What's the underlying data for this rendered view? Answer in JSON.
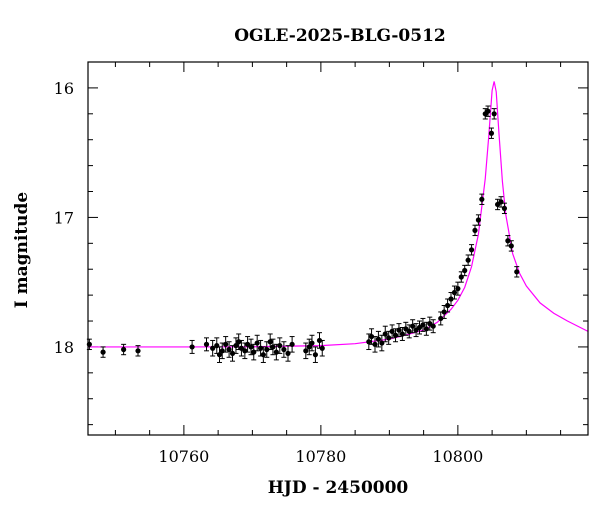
{
  "chart_data": {
    "type": "scatter",
    "title": "OGLE-2025-BLG-0512",
    "xlabel": "HJD - 2450000",
    "ylabel": "I magnitude",
    "xlim": [
      10746,
      10819
    ],
    "ylim": [
      18.68,
      15.8
    ],
    "y_inverted": true,
    "xticks_major": [
      10760,
      10780,
      10800
    ],
    "yticks_major": [
      16,
      17,
      18
    ],
    "grid": false,
    "colors": {
      "points": "#000000",
      "model": "#ff00ff"
    },
    "series": [
      {
        "kind": "observations",
        "x": [
          10746.2,
          10748.2,
          10751.2,
          10753.3,
          10761.2,
          10763.3,
          10764.2,
          10764.8,
          10765.2,
          10765.6,
          10766.1,
          10766.6,
          10767.1,
          10767.6,
          10768.0,
          10768.4,
          10768.9,
          10769.3,
          10769.8,
          10770.2,
          10770.7,
          10771.2,
          10771.6,
          10772.1,
          10772.6,
          10773.0,
          10773.5,
          10774.0,
          10774.6,
          10775.2,
          10775.8,
          10777.8,
          10778.3,
          10778.7,
          10779.2,
          10779.8,
          10780.2,
          10787.0,
          10787.4,
          10787.9,
          10788.4,
          10788.9,
          10789.4,
          10789.9,
          10790.4,
          10790.9,
          10791.4,
          10791.9,
          10792.4,
          10792.9,
          10793.4,
          10793.9,
          10794.4,
          10794.9,
          10795.4,
          10795.9,
          10796.4,
          10797.5,
          10798.0,
          10798.5,
          10799.0,
          10799.5,
          10800.0,
          10800.5,
          10801.0,
          10801.5,
          10802.0,
          10802.5,
          10803.0,
          10803.5,
          10804.0,
          10804.4,
          10804.9,
          10805.3,
          10805.8,
          10806.3,
          10806.8,
          10807.3,
          10807.8,
          10808.6
        ],
        "y": [
          17.98,
          18.04,
          18.02,
          18.03,
          18.0,
          17.98,
          18.01,
          17.99,
          18.06,
          18.03,
          17.98,
          18.02,
          18.05,
          17.99,
          17.96,
          18.01,
          18.03,
          17.98,
          18.0,
          18.04,
          17.97,
          18.01,
          18.06,
          18.02,
          17.96,
          18.0,
          18.04,
          17.99,
          18.02,
          18.05,
          17.98,
          18.03,
          18.0,
          17.97,
          18.06,
          17.95,
          18.01,
          17.96,
          17.92,
          17.98,
          17.94,
          17.97,
          17.9,
          17.93,
          17.88,
          17.91,
          17.87,
          17.9,
          17.86,
          17.88,
          17.84,
          17.87,
          17.85,
          17.83,
          17.86,
          17.82,
          17.84,
          17.78,
          17.73,
          17.68,
          17.63,
          17.58,
          17.55,
          17.46,
          17.41,
          17.33,
          17.25,
          17.1,
          17.02,
          16.86,
          16.2,
          16.18,
          16.35,
          16.2,
          16.9,
          16.88,
          16.93,
          17.18,
          17.22,
          17.42
        ],
        "yerr": [
          0.04,
          0.04,
          0.04,
          0.04,
          0.05,
          0.05,
          0.06,
          0.06,
          0.06,
          0.06,
          0.06,
          0.06,
          0.06,
          0.06,
          0.06,
          0.06,
          0.06,
          0.06,
          0.06,
          0.06,
          0.06,
          0.06,
          0.06,
          0.06,
          0.06,
          0.06,
          0.06,
          0.06,
          0.06,
          0.06,
          0.06,
          0.06,
          0.06,
          0.06,
          0.06,
          0.06,
          0.06,
          0.06,
          0.06,
          0.06,
          0.06,
          0.06,
          0.06,
          0.05,
          0.05,
          0.05,
          0.05,
          0.05,
          0.05,
          0.05,
          0.05,
          0.05,
          0.05,
          0.05,
          0.05,
          0.05,
          0.05,
          0.05,
          0.05,
          0.05,
          0.05,
          0.05,
          0.05,
          0.04,
          0.04,
          0.04,
          0.04,
          0.04,
          0.04,
          0.04,
          0.04,
          0.04,
          0.04,
          0.04,
          0.04,
          0.04,
          0.04,
          0.04,
          0.04,
          0.04
        ]
      },
      {
        "kind": "model",
        "x": [
          10746,
          10760,
          10770,
          10780,
          10785,
          10790,
          10793,
          10795,
          10797,
          10799,
          10800,
          10801,
          10802,
          10803,
          10804,
          10804.5,
          10805,
          10805.3,
          10805.6,
          10806,
          10806.5,
          10807,
          10808,
          10809,
          10810,
          10812,
          10814,
          10816,
          10819
        ],
        "y": [
          18.0,
          18.0,
          17.999,
          17.99,
          17.975,
          17.94,
          17.9,
          17.87,
          17.81,
          17.71,
          17.64,
          17.54,
          17.38,
          17.13,
          16.7,
          16.38,
          16.02,
          15.95,
          16.03,
          16.35,
          16.72,
          16.98,
          17.28,
          17.43,
          17.53,
          17.66,
          17.74,
          17.8,
          17.88
        ]
      }
    ]
  }
}
